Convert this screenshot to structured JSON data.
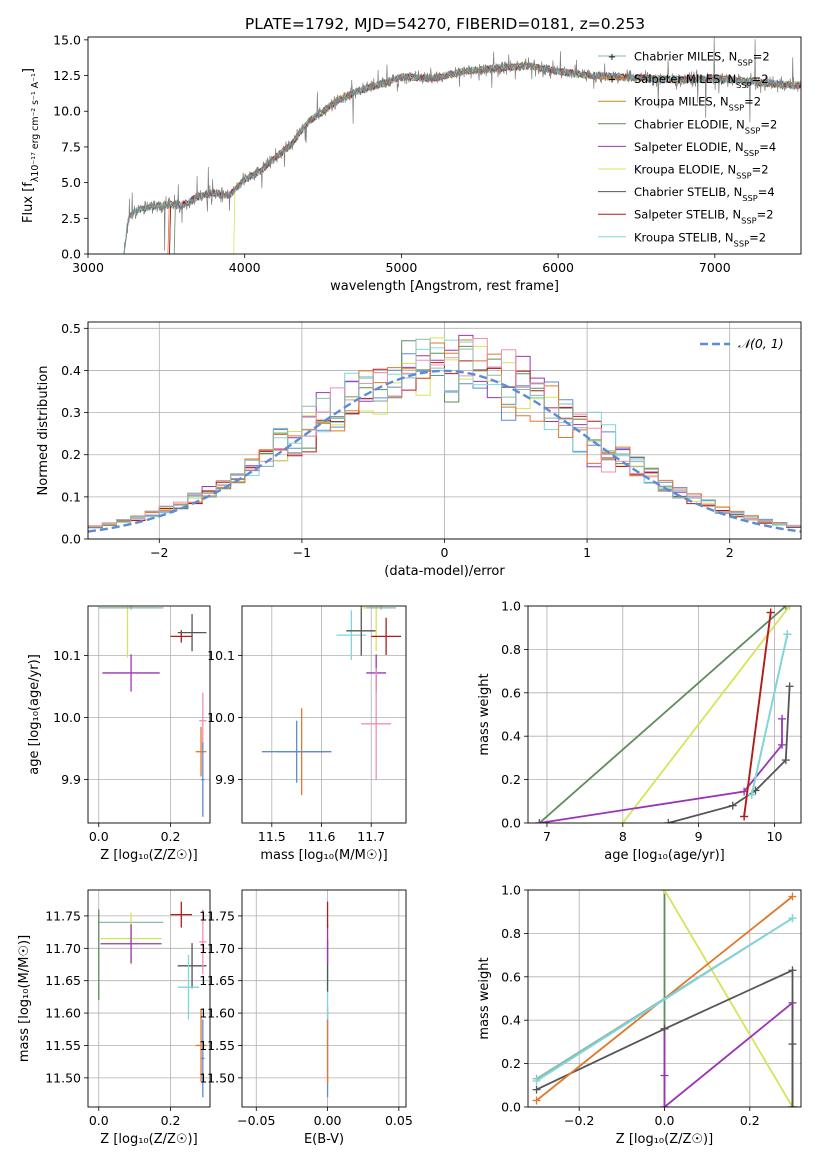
{
  "figure_title": "PLATE=1792, MJD=54270, FIBERID=0181, z=0.253",
  "colors": {
    "chabrier_miles": "#8fb8ad",
    "salpeter_miles": "#e0782e",
    "kroupa_miles": "#c98d1c",
    "chabrier_elodie": "#5e8c5a",
    "salpeter_elodie": "#9b35b5",
    "kroupa_elodie": "#d8e35a",
    "chabrier_stelib": "#555555",
    "salpeter_stelib": "#b01c1c",
    "kroupa_stelib": "#7fd6dc",
    "data": "#808080",
    "normal": "#5b8bd9",
    "pink": "#f08fb0",
    "blue": "#5b8bd9"
  },
  "legend": [
    "Chabrier MILES, N$SSP=2",
    "Salpeter MILES, N$SSP=2",
    "Kroupa MILES, N$SSP=2",
    "Chabrier ELODIE, N$SSP=2",
    "Salpeter ELODIE, N$SSP=4",
    "Kroupa ELODIE, N$SSP=2",
    "Chabrier STELIB, N$SSP=4",
    "Salpeter STELIB, N$SSP=2",
    "Kroupa STELIB, N$SSP=2"
  ],
  "chart_data": [
    {
      "type": "line",
      "xlabel": "wavelength [Angstrom, rest frame]",
      "ylabel": "Flux [f$λ10⁻¹⁷ erg cm⁻² s⁻¹ A⁻¹]",
      "xlim": [
        3000,
        7550
      ],
      "ylim": [
        0,
        15.2
      ],
      "xticks": [
        "3000",
        "4000",
        "5000",
        "6000",
        "7000"
      ],
      "yticks": [
        "0.0",
        "2.5",
        "5.0",
        "7.5",
        "10.0",
        "12.5",
        "15.0"
      ],
      "spectrum_start": 3230,
      "spectrum_profile": {
        "x": [
          3230,
          3260,
          3300,
          3400,
          3500,
          3600,
          3700,
          3800,
          3900,
          4000,
          4100,
          4200,
          4300,
          4400,
          4500,
          4600,
          4700,
          4800,
          4900,
          5000,
          5200,
          5400,
          5600,
          5800,
          6000,
          6200,
          6400,
          6600,
          6800,
          7000,
          7200,
          7400,
          7550
        ],
        "y": [
          0.0,
          2.6,
          3.0,
          3.3,
          3.5,
          3.4,
          4.0,
          4.3,
          4.1,
          5.2,
          5.8,
          6.8,
          7.7,
          9.2,
          10.0,
          10.8,
          11.3,
          11.7,
          12.0,
          12.4,
          12.3,
          12.8,
          13.0,
          13.2,
          12.8,
          12.5,
          12.4,
          12.3,
          12.2,
          12.3,
          12.1,
          11.9,
          11.8
        ]
      },
      "model_start": [
        3230,
        3510,
        3230,
        3550,
        3520,
        3930,
        3230,
        3520,
        3230
      ]
    },
    {
      "type": "histogram",
      "xlabel": "(data-model)/error",
      "ylabel": "Normed distribution",
      "xlim": [
        -2.5,
        2.5
      ],
      "ylim": [
        0,
        0.515
      ],
      "xticks": [
        "−2",
        "−1",
        "0",
        "1",
        "2"
      ],
      "yticks": [
        "0.0",
        "0.1",
        "0.2",
        "0.3",
        "0.4",
        "0.5"
      ],
      "bin_width": 0.1,
      "reference_label": "𝒩(0, 1)"
    },
    {
      "type": "scatter",
      "xlabel": "Z [log₁₀(Z/Z☉)]",
      "ylabel": "age  [log₁₀(age/yr)]",
      "xlim": [
        -0.03,
        0.31
      ],
      "ylim": [
        9.83,
        10.18
      ],
      "xticks": [
        "0.0",
        "0.2"
      ],
      "yticks": [
        "9.9",
        "10.0",
        "10.1"
      ],
      "points": [
        {
          "c": "kroupa_elodie",
          "x": 0.08,
          "xerr": 0.08,
          "y": 10.177,
          "yerr": 0.08
        },
        {
          "c": "chabrier_miles",
          "x": 0.09,
          "xerr": 0.09,
          "y": 10.177,
          "yerr": 0.003
        },
        {
          "c": "salpeter_elodie",
          "x": 0.09,
          "xerr": 0.08,
          "y": 10.072,
          "yerr": 0.03
        },
        {
          "c": "salpeter_stelib",
          "x": 0.23,
          "xerr": 0.03,
          "y": 10.131,
          "yerr": 0.01
        },
        {
          "c": "chabrier_stelib",
          "x": 0.26,
          "xerr": 0.04,
          "y": 10.137,
          "yerr": 0.03
        },
        {
          "c": "pink",
          "x": 0.29,
          "xerr": 0.01,
          "y": 9.995,
          "yerr": 0.045
        },
        {
          "c": "salpeter_miles",
          "x": 0.285,
          "xerr": 0.015,
          "y": 9.945,
          "yerr": 0.04
        },
        {
          "c": "blue",
          "x": 0.29,
          "xerr": 0.005,
          "y": 9.9,
          "yerr": 0.06
        }
      ]
    },
    {
      "type": "scatter",
      "xlabel": "mass [log₁₀(M/M☉)]",
      "ylabel": "",
      "xlim": [
        11.44,
        11.77
      ],
      "ylim": [
        9.83,
        10.18
      ],
      "xticks": [
        "11.5",
        "11.6",
        "11.7"
      ],
      "yticks": [
        "9.9",
        "10.0",
        "10.1"
      ],
      "points": [
        {
          "c": "salpeter_miles",
          "x": 11.56,
          "xerr": 0.05,
          "y": 9.945,
          "yerr": 0.07
        },
        {
          "c": "blue",
          "x": 11.55,
          "xerr": 0.07,
          "y": 9.945,
          "yerr": 0.05
        },
        {
          "c": "kroupa_stelib",
          "x": 11.66,
          "xerr": 0.03,
          "y": 10.133,
          "yerr": 0.04
        },
        {
          "c": "chabrier_stelib",
          "x": 11.68,
          "xerr": 0.03,
          "y": 10.14,
          "yerr": 0.04
        },
        {
          "c": "kroupa_elodie",
          "x": 11.71,
          "xerr": 0.03,
          "y": 10.177,
          "yerr": 0.07
        },
        {
          "c": "chabrier_miles",
          "x": 11.72,
          "xerr": 0.03,
          "y": 10.177,
          "yerr": 0.003
        },
        {
          "c": "salpeter_elodie",
          "x": 11.71,
          "xerr": 0.02,
          "y": 10.072,
          "yerr": 0.03
        },
        {
          "c": "salpeter_stelib",
          "x": 11.73,
          "xerr": 0.03,
          "y": 10.131,
          "yerr": 0.03
        },
        {
          "c": "pink",
          "x": 11.71,
          "xerr": 0.03,
          "y": 9.99,
          "yerr": 0.09
        }
      ]
    },
    {
      "type": "line",
      "xlabel": "age  [log₁₀(age/yr)]",
      "ylabel": "mass weight",
      "xlim": [
        6.75,
        10.35
      ],
      "ylim": [
        0,
        1.0
      ],
      "xticks": [
        "7",
        "8",
        "9",
        "10"
      ],
      "yticks": [
        "0.0",
        "0.2",
        "0.4",
        "0.6",
        "0.8",
        "1.0"
      ],
      "series": [
        {
          "c": "chabrier_elodie",
          "x": [
            6.9,
            10.15
          ],
          "y": [
            0.0,
            1.0
          ]
        },
        {
          "c": "kroupa_elodie",
          "x": [
            8.0,
            10.2
          ],
          "y": [
            0.0,
            1.0
          ]
        },
        {
          "c": "salpeter_elodie",
          "x": [
            6.9,
            9.6,
            10.1,
            10.1
          ],
          "y": [
            0.0,
            0.145,
            0.36,
            0.48
          ]
        },
        {
          "c": "chabrier_stelib",
          "x": [
            8.6,
            9.45,
            9.75,
            10.15,
            10.2
          ],
          "y": [
            0.0,
            0.08,
            0.15,
            0.29,
            0.63
          ]
        },
        {
          "c": "salpeter_miles",
          "x": [
            9.6,
            9.95
          ],
          "y": [
            0.03,
            0.97
          ]
        },
        {
          "c": "salpeter_stelib",
          "x": [
            9.6,
            9.95
          ],
          "y": [
            0.03,
            0.97
          ]
        },
        {
          "c": "chabrier_miles",
          "x": [
            9.7,
            10.17
          ],
          "y": [
            0.13,
            0.87
          ]
        },
        {
          "c": "kroupa_stelib",
          "x": [
            9.7,
            10.17
          ],
          "y": [
            0.13,
            0.87
          ]
        }
      ]
    },
    {
      "type": "scatter",
      "xlabel": "Z [log₁₀(Z/Z☉)]",
      "ylabel": "mass [log₁₀(M/M☉)]",
      "xlim": [
        -0.03,
        0.31
      ],
      "ylim": [
        11.455,
        11.79
      ],
      "xticks": [
        "0.0",
        "0.2"
      ],
      "yticks": [
        "11.50",
        "11.55",
        "11.60",
        "11.65",
        "11.70",
        "11.75"
      ],
      "points": [
        {
          "c": "chabrier_miles",
          "x": 0.09,
          "xerr": 0.09,
          "y": 11.74,
          "yerr": 0.003
        },
        {
          "c": "chabrier_elodie",
          "x": 0.0,
          "xerr": 0.0,
          "y": 11.69,
          "yerr": 0.07
        },
        {
          "c": "kroupa_elodie",
          "x": 0.09,
          "xerr": 0.085,
          "y": 11.715,
          "yerr": 0.04
        },
        {
          "c": "salpeter_elodie",
          "x": 0.09,
          "xerr": 0.085,
          "y": 11.707,
          "yerr": 0.03
        },
        {
          "c": "salpeter_stelib",
          "x": 0.23,
          "xerr": 0.03,
          "y": 11.752,
          "yerr": 0.02
        },
        {
          "c": "chabrier_stelib",
          "x": 0.26,
          "xerr": 0.04,
          "y": 11.673,
          "yerr": 0.035
        },
        {
          "c": "kroupa_stelib",
          "x": 0.25,
          "xerr": 0.03,
          "y": 11.64,
          "yerr": 0.05
        },
        {
          "c": "pink",
          "x": 0.29,
          "xerr": 0.01,
          "y": 11.71,
          "yerr": 0.05
        },
        {
          "c": "salpeter_miles",
          "x": 0.285,
          "xerr": 0.015,
          "y": 11.55,
          "yerr": 0.055
        },
        {
          "c": "blue",
          "x": 0.29,
          "xerr": 0.005,
          "y": 11.53,
          "yerr": 0.06
        }
      ]
    },
    {
      "type": "scatter",
      "xlabel": "E(B-V)",
      "ylabel": "",
      "xlim": [
        -0.06,
        0.055
      ],
      "ylim": [
        11.455,
        11.79
      ],
      "xticks": [
        "−0.05",
        "0.00",
        "0.05"
      ],
      "yticks": [
        "11.50",
        "11.55",
        "11.60",
        "11.65",
        "11.70",
        "11.75"
      ],
      "points": [
        {
          "c": "blue",
          "x": 0.0,
          "xerr": 0.0,
          "y": 11.53,
          "yerr": 0.06
        },
        {
          "c": "salpeter_miles",
          "x": 0.0,
          "xerr": 0.0,
          "y": 11.55,
          "yerr": 0.06
        },
        {
          "c": "kroupa_stelib",
          "x": 0.0,
          "xerr": 0.0,
          "y": 11.64,
          "yerr": 0.05
        },
        {
          "c": "chabrier_stelib",
          "x": 0.0,
          "xerr": 0.0,
          "y": 11.673,
          "yerr": 0.04
        },
        {
          "c": "salpeter_elodie",
          "x": 0.0,
          "xerr": 0.0,
          "y": 11.707,
          "yerr": 0.03
        },
        {
          "c": "salpeter_stelib",
          "x": 0.0,
          "xerr": 0.0,
          "y": 11.752,
          "yerr": 0.02
        }
      ]
    },
    {
      "type": "line",
      "xlabel": "Z [log₁₀(Z/Z☉)]",
      "ylabel": "mass weight",
      "xlim": [
        -0.32,
        0.32
      ],
      "ylim": [
        0,
        1.0
      ],
      "xticks": [
        "−0.2",
        "0.0",
        "0.2"
      ],
      "yticks": [
        "0.0",
        "0.2",
        "0.4",
        "0.6",
        "0.8",
        "1.0"
      ],
      "series": [
        {
          "c": "chabrier_elodie",
          "x": [
            0.0,
            0.0
          ],
          "y": [
            1.0,
            0.0
          ]
        },
        {
          "c": "kroupa_elodie",
          "x": [
            0.0,
            0.3
          ],
          "y": [
            1.0,
            0.0
          ]
        },
        {
          "c": "salpeter_elodie",
          "x": [
            0.0,
            0.0,
            0.0,
            0.3,
            0.3
          ],
          "y": [
            0.36,
            0.145,
            0.0,
            0.48,
            0.0
          ]
        },
        {
          "c": "chabrier_stelib",
          "x": [
            -0.3,
            0.0,
            0.3,
            0.3,
            0.3
          ],
          "y": [
            0.08,
            0.36,
            0.63,
            0.29,
            0.0
          ]
        },
        {
          "c": "salpeter_miles",
          "x": [
            -0.3,
            0.3
          ],
          "y": [
            0.03,
            0.97
          ]
        },
        {
          "c": "chabrier_miles",
          "x": [
            -0.3,
            0.3
          ],
          "y": [
            0.13,
            0.87
          ]
        },
        {
          "c": "kroupa_stelib",
          "x": [
            -0.3,
            0.3
          ],
          "y": [
            0.12,
            0.87
          ]
        }
      ]
    }
  ]
}
